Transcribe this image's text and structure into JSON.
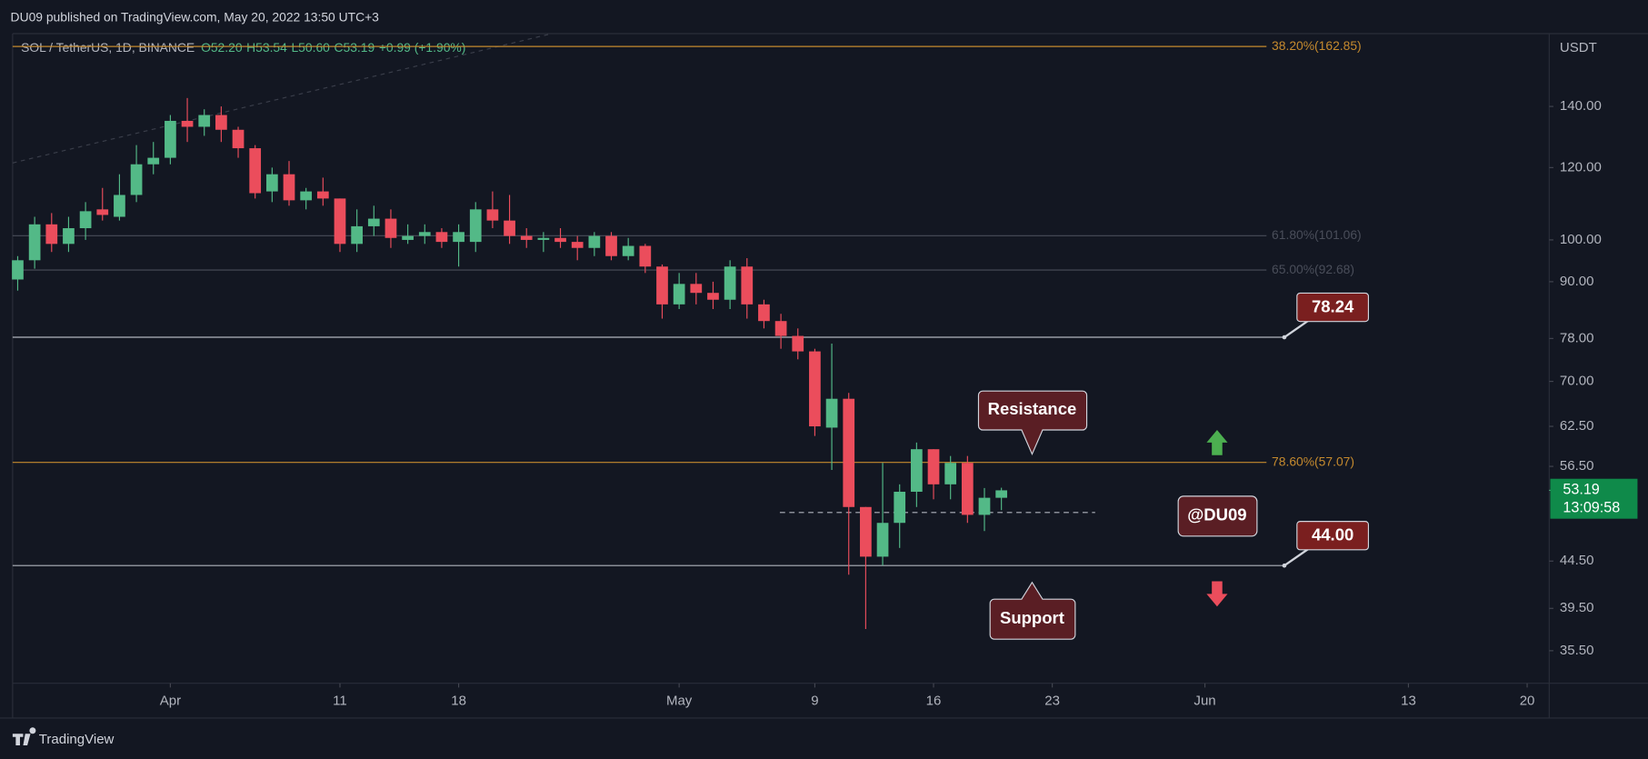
{
  "header": "DU09 published on TradingView.com, May 20, 2022 13:50 UTC+3",
  "footer": "TradingView",
  "chart_data": {
    "type": "candlestick",
    "title": "SOL / TetherUS, 1D, BINANCE",
    "ohlc_legend": [
      "O52.20",
      "H53.54",
      "L50.60",
      "C53.19",
      "+0.99 (+1.90%)"
    ],
    "y_axis_label": "USDT",
    "up_color": "#53b987",
    "down_color": "#eb4d5c",
    "open": [
      90.5,
      95,
      104,
      99,
      103,
      108,
      106,
      112,
      121,
      123,
      135,
      133,
      137,
      132,
      126,
      113,
      118,
      110.5,
      113,
      111,
      99,
      103.5,
      105.5,
      100,
      101,
      102,
      99.5,
      99.5,
      108,
      105,
      101,
      100,
      100.5,
      99.5,
      98,
      101,
      96,
      98.5,
      93.5,
      85,
      89.5,
      87.5,
      86,
      93.5,
      85,
      81.5,
      78.5,
      75.5,
      62.3,
      67,
      51,
      45,
      49,
      53,
      59,
      54,
      57,
      50,
      52.2
    ],
    "high": [
      96,
      106,
      107,
      106,
      110,
      114,
      118,
      127,
      128,
      137,
      143,
      139,
      140,
      133,
      127,
      120,
      122,
      114,
      117,
      111,
      108,
      109,
      108,
      104,
      104,
      103,
      104,
      110,
      113,
      112,
      103,
      102,
      103,
      101,
      102,
      102,
      100.5,
      99,
      94,
      92,
      92,
      90,
      95,
      95.5,
      86,
      83,
      80,
      76,
      77,
      68,
      51,
      57,
      54,
      60,
      59,
      58,
      58,
      53.5,
      53.54
    ],
    "low": [
      88,
      93,
      97,
      97,
      100,
      105,
      105,
      110,
      118,
      121,
      128,
      130,
      128,
      123,
      111,
      110,
      109,
      108,
      109,
      97,
      97,
      101,
      98,
      99,
      99,
      98,
      93.5,
      97,
      103,
      99,
      98,
      97,
      98,
      95,
      96,
      95,
      95,
      92,
      82,
      84,
      85,
      84,
      84,
      82,
      80,
      76,
      74,
      61,
      56,
      43,
      37.5,
      44,
      46,
      51,
      52,
      52,
      49,
      48,
      50.6
    ],
    "close": [
      95,
      104,
      99,
      103,
      107.5,
      106.5,
      112,
      121,
      123,
      135,
      133,
      137,
      132,
      126,
      112.5,
      118,
      110.5,
      113,
      111,
      99,
      103.5,
      105.5,
      100.5,
      101,
      102,
      99.5,
      102,
      108,
      105,
      101,
      100,
      100.5,
      99.5,
      98,
      101,
      96,
      98.5,
      93.5,
      85,
      89.5,
      87.5,
      86,
      93.5,
      85,
      81.5,
      78.5,
      75.5,
      62.5,
      67,
      51,
      45,
      49,
      53,
      59,
      54,
      57,
      50,
      52.2,
      53.19
    ],
    "log_scale": true,
    "ylim": [
      32.7,
      168.2
    ],
    "yticks": [
      {
        "value": 35.5,
        "label": "35.50"
      },
      {
        "value": 39.5,
        "label": "39.50"
      },
      {
        "value": 44.5,
        "label": "44.50"
      },
      {
        "value": 56.5,
        "label": "56.50"
      },
      {
        "value": 62.5,
        "label": "62.50"
      },
      {
        "value": 70,
        "label": "70.00"
      },
      {
        "value": 78,
        "label": "78.00"
      },
      {
        "value": 90,
        "label": "90.00"
      },
      {
        "value": 100,
        "label": "100.00"
      },
      {
        "value": 120,
        "label": "120.00"
      },
      {
        "value": 140,
        "label": "140.00"
      }
    ],
    "xlim": [
      -0.3,
      90.3
    ],
    "xticks": [
      {
        "value": 9,
        "label": "Apr"
      },
      {
        "value": 19,
        "label": "11"
      },
      {
        "value": 26,
        "label": "18"
      },
      {
        "value": 39,
        "label": "May"
      },
      {
        "value": 47,
        "label": "9"
      },
      {
        "value": 54,
        "label": "16"
      },
      {
        "value": 61,
        "label": "23"
      },
      {
        "value": 70,
        "label": "Jun"
      },
      {
        "value": 82,
        "label": "13"
      },
      {
        "value": 89,
        "label": "20"
      }
    ],
    "fib_levels": [
      {
        "value": 162.85,
        "label": "38.20%(162.85)",
        "color": "#c58a2e"
      },
      {
        "value": 101.06,
        "label": "61.80%(101.06)",
        "color": "#4a4e5a"
      },
      {
        "value": 92.68,
        "label": "65.00%(92.68)",
        "color": "#4a4e5a"
      },
      {
        "value": 57.07,
        "label": "78.60%(57.07)",
        "color": "#c58a2e"
      }
    ],
    "levels": [
      78.24,
      {
        "value": 44,
        "label": "44.00"
      }
    ],
    "dashed_level": 50.3,
    "last_price": 53.19,
    "countdown": "13:09:58",
    "annotations": [
      "Resistance",
      "Support",
      "@DU09"
    ]
  }
}
